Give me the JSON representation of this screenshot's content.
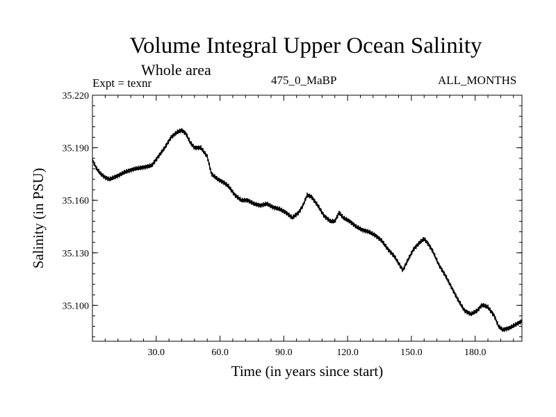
{
  "header": {
    "title": "Volume Integral Upper Ocean Salinity",
    "subtitle": "Whole area",
    "experiment": "Expt = texnr",
    "run_label": "475_0_MaBP",
    "months_label": "ALL_MONTHS"
  },
  "chart_data": {
    "type": "line",
    "title": "Volume Integral Upper Ocean Salinity",
    "subtitle": "Whole area",
    "xlabel": "Time (in years since start)",
    "ylabel": "Salinity (in PSU)",
    "xlim": [
      0,
      202
    ],
    "ylim": [
      35.0795,
      35.22
    ],
    "x_ticks": [
      30,
      60,
      90,
      120,
      150,
      180
    ],
    "x_tick_labels": [
      "30.0",
      "60.0",
      "90.0",
      "120.0",
      "150.0",
      "180.0"
    ],
    "y_ticks": [
      35.1,
      35.13,
      35.16,
      35.19,
      35.22
    ],
    "y_tick_labels": [
      "35.100",
      "35.130",
      "35.160",
      "35.190",
      "35.220"
    ],
    "grid": false,
    "series": [
      {
        "name": "Salinity",
        "x": [
          0,
          2,
          4,
          6,
          8,
          10,
          12,
          15,
          20,
          25,
          28,
          31,
          34,
          37,
          40,
          42,
          44,
          46,
          48,
          51,
          54,
          56,
          59,
          62,
          64,
          67,
          70,
          73,
          76,
          79,
          82,
          85,
          88,
          91,
          94,
          97,
          99,
          101,
          103,
          106,
          109,
          112,
          114,
          116,
          118,
          121,
          124,
          127,
          130,
          133,
          136,
          139,
          142,
          145,
          146,
          148,
          151,
          154,
          156,
          158,
          160,
          163,
          166,
          169,
          172,
          175,
          178,
          181,
          183,
          184,
          186,
          189,
          191,
          193,
          196,
          199,
          202
        ],
        "y": [
          35.183,
          35.178,
          35.175,
          35.173,
          35.172,
          35.173,
          35.174,
          35.176,
          35.178,
          35.179,
          35.18,
          35.185,
          35.19,
          35.196,
          35.199,
          35.2,
          35.198,
          35.193,
          35.19,
          35.19,
          35.185,
          35.175,
          35.172,
          35.17,
          35.168,
          35.163,
          35.16,
          35.16,
          35.158,
          35.157,
          35.158,
          35.156,
          35.155,
          35.153,
          35.15,
          35.153,
          35.157,
          35.163,
          35.162,
          35.157,
          35.151,
          35.148,
          35.148,
          35.153,
          35.15,
          35.148,
          35.145,
          35.143,
          35.142,
          35.14,
          35.137,
          35.132,
          35.128,
          35.122,
          35.12,
          35.125,
          35.132,
          35.136,
          35.138,
          35.135,
          35.131,
          35.123,
          35.117,
          35.11,
          35.103,
          35.097,
          35.095,
          35.097,
          35.1,
          35.1,
          35.099,
          35.094,
          35.088,
          35.086,
          35.087,
          35.089,
          35.091
        ]
      }
    ]
  }
}
